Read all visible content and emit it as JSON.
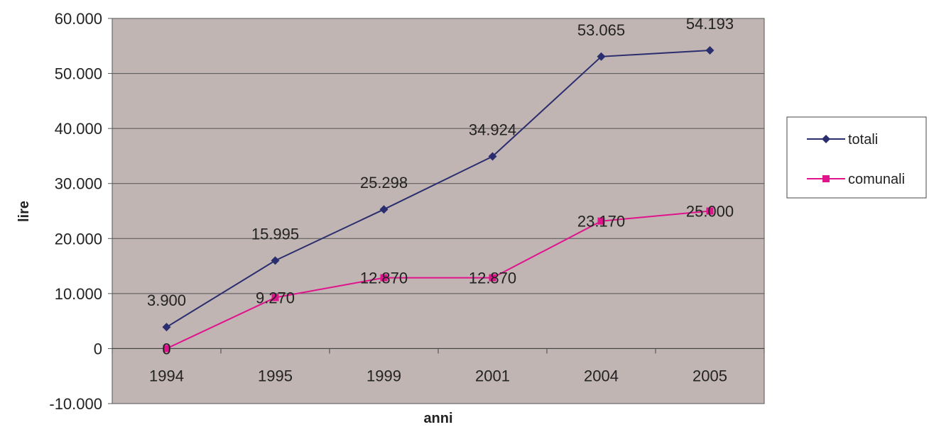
{
  "chart_data": {
    "type": "line",
    "categories": [
      "1994",
      "1995",
      "1999",
      "2001",
      "2004",
      "2005"
    ],
    "series": [
      {
        "name": "totali",
        "values": [
          3900,
          15995,
          25298,
          34924,
          53065,
          54193
        ],
        "labels": [
          "3.900",
          "15.995",
          "25.298",
          "34.924",
          "53.065",
          "54.193"
        ],
        "color": "#2b2e6e",
        "marker": "diamond"
      },
      {
        "name": "comunali",
        "values": [
          0,
          9270,
          12870,
          12870,
          23170,
          25000
        ],
        "labels": [
          "0",
          "9.270",
          "12.870",
          "12.870",
          "23.170",
          "25.000"
        ],
        "color": "#e0138c",
        "marker": "square"
      }
    ],
    "title": "",
    "xlabel": "anni",
    "ylabel": "lire",
    "ylim": [
      -10000,
      60000
    ],
    "yticks": [
      -10000,
      0,
      10000,
      20000,
      30000,
      40000,
      50000,
      60000
    ],
    "ytick_labels": [
      "-10.000",
      "0",
      "10.000",
      "20.000",
      "30.000",
      "40.000",
      "50.000",
      "60.000"
    ],
    "grid": true,
    "plot_background": "#c0b5b3",
    "legend_position": "right"
  }
}
